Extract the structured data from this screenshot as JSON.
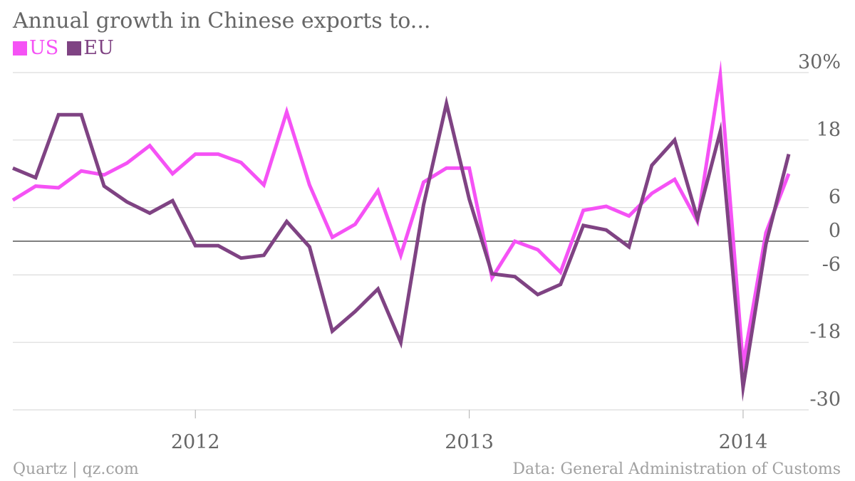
{
  "title": "Annual growth in Chinese exports to...",
  "source": "Quartz | qz.com",
  "credit": "Data: General Administration of Customs",
  "chart_data": {
    "type": "line",
    "y_ticks": [
      {
        "value": 30,
        "label": "30%"
      },
      {
        "value": 18,
        "label": "18"
      },
      {
        "value": 6,
        "label": "6"
      },
      {
        "value": 0,
        "label": "0"
      },
      {
        "value": -6,
        "label": "-6"
      },
      {
        "value": -18,
        "label": "-18"
      },
      {
        "value": -30,
        "label": "-30"
      }
    ],
    "ylim": [
      -30,
      30
    ],
    "x_ticks": [
      "2012",
      "2013",
      "2014"
    ],
    "x": [
      "2011-05",
      "2011-06",
      "2011-07",
      "2011-08",
      "2011-09",
      "2011-10",
      "2011-11",
      "2011-12",
      "2012-01",
      "2012-02",
      "2012-03",
      "2012-04",
      "2012-05",
      "2012-06",
      "2012-07",
      "2012-08",
      "2012-09",
      "2012-10",
      "2012-11",
      "2012-12",
      "2013-01",
      "2013-02",
      "2013-03",
      "2013-04",
      "2013-05",
      "2013-06",
      "2013-07",
      "2013-08",
      "2013-09",
      "2013-10",
      "2013-11",
      "2013-12",
      "2014-01",
      "2014-02",
      "2014-03"
    ],
    "series": [
      {
        "name": "US",
        "color": "#f552f5",
        "values": [
          7.3,
          9.8,
          9.5,
          12.5,
          11.8,
          13.9,
          17.0,
          12.0,
          15.5,
          15.5,
          14.0,
          10.0,
          23.0,
          10.0,
          0.7,
          3.0,
          9.0,
          -2.5,
          10.5,
          13.0,
          13.0,
          -6.5,
          0.0,
          -1.5,
          -5.5,
          5.5,
          6.2,
          4.5,
          8.5,
          11.0,
          3.5,
          29.5,
          -22.0,
          1.5,
          12.0
        ]
      },
      {
        "name": "EU",
        "color": "#7f4383",
        "values": [
          13.0,
          11.3,
          22.5,
          22.5,
          9.8,
          7.0,
          5.0,
          7.2,
          -0.8,
          -0.8,
          -3.0,
          -2.5,
          3.5,
          -1.0,
          -16.0,
          -12.5,
          -8.5,
          -18.0,
          6.5,
          24.5,
          7.5,
          -5.8,
          -6.3,
          -9.5,
          -7.7,
          2.8,
          2.0,
          -1.0,
          13.5,
          18.0,
          4.0,
          19.5,
          -26.0,
          -0.5,
          15.5
        ]
      }
    ],
    "grid": true,
    "legend_position": "top-left"
  }
}
